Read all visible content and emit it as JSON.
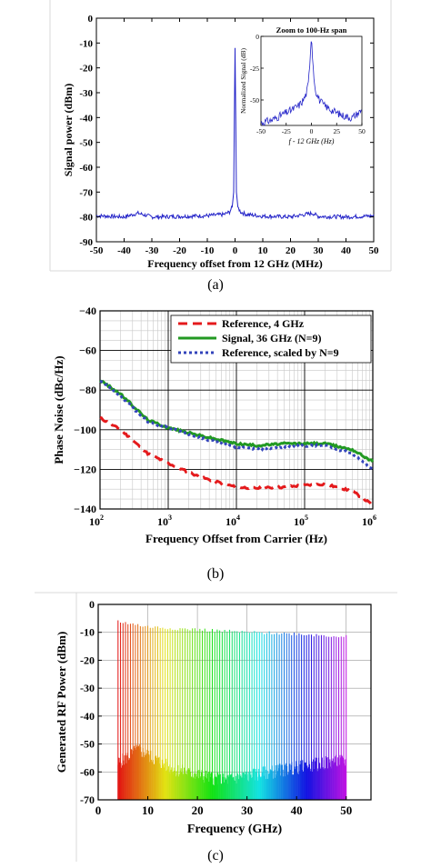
{
  "chart_data": [
    {
      "id": "a",
      "type": "line",
      "caption": "(a)",
      "xlabel": "Frequency offset from 12 GHz (MHz)",
      "ylabel": "Signal power (dBm)",
      "xlim": [
        -50,
        50
      ],
      "ylim": [
        -90,
        0
      ],
      "xticks": [
        -50,
        -40,
        -30,
        -20,
        -10,
        0,
        10,
        20,
        30,
        40,
        50
      ],
      "yticks": [
        0,
        -10,
        -20,
        -30,
        -40,
        -50,
        -60,
        -70,
        -80,
        -90
      ],
      "grid": false,
      "color": "#2323c8",
      "series": [
        {
          "x": [
            -50,
            -40,
            -35,
            -30,
            -20,
            -10,
            -4,
            -2,
            -1,
            -0.5,
            0,
            0.5,
            1,
            2,
            4,
            10,
            20,
            28,
            30,
            40,
            50
          ],
          "y": [
            -79.5,
            -80,
            -78.5,
            -80,
            -79.8,
            -79.5,
            -79,
            -78,
            -76,
            -70,
            -12,
            -70,
            -76,
            -78,
            -79,
            -79.7,
            -80,
            -78.5,
            -79.8,
            -80,
            -79.6
          ]
        }
      ],
      "inset": {
        "title": "Zoom to 100-Hz span",
        "xlabel": "f - 12 GHz (Hz)",
        "ylabel": "Normalized Signal (dB)",
        "xlim": [
          -50,
          50
        ],
        "ylim": [
          -70,
          0
        ],
        "xticks": [
          -50,
          -25,
          0,
          25,
          50
        ],
        "yticks": [
          0,
          -25,
          -50
        ],
        "series": [
          {
            "x": [
              -50,
              -40,
              -30,
              -20,
              -12,
              -8,
              -5,
              -3,
              -1.5,
              0,
              1.5,
              3,
              5,
              8,
              12,
              20,
              30,
              40,
              50
            ],
            "y": [
              -68,
              -66,
              -62,
              -58,
              -54,
              -50,
              -45,
              -37,
              -20,
              0,
              -20,
              -37,
              -45,
              -50,
              -54,
              -58,
              -62,
              -64,
              -58
            ]
          }
        ]
      }
    },
    {
      "id": "b",
      "type": "line",
      "caption": "(b)",
      "xlabel": "Frequency Offset from Carrier (Hz)",
      "ylabel": "Phase Noise (dBc/Hz)",
      "xscale": "log",
      "xlim": [
        100,
        1000000
      ],
      "ylim": [
        -140,
        -40
      ],
      "xticks": [
        "10",
        "10",
        "10",
        "10",
        "10"
      ],
      "xtick_exponents": [
        "2",
        "3",
        "4",
        "5",
        "6"
      ],
      "yticks": [
        "−140",
        "−120",
        "−100",
        "−80",
        "−60",
        "−40"
      ],
      "grid": true,
      "legend": "top-right",
      "series": [
        {
          "name": "Reference, 4 GHz",
          "color": "#e41a1c",
          "style": "dashed",
          "x": [
            100,
            200,
            500,
            1000,
            3000,
            10000,
            20000,
            50000,
            100000,
            200000,
            500000,
            1000000
          ],
          "y": [
            -94,
            -100,
            -112,
            -117,
            -124,
            -129,
            -129.5,
            -129,
            -128,
            -127.5,
            -131,
            -138
          ]
        },
        {
          "name": "Signal, 36 GHz (N=9)",
          "color": "#229922",
          "style": "solid",
          "x": [
            100,
            200,
            500,
            1000,
            3000,
            10000,
            20000,
            50000,
            100000,
            200000,
            500000,
            1000000
          ],
          "y": [
            -75,
            -82,
            -95,
            -99,
            -103,
            -107,
            -108,
            -107,
            -107,
            -107,
            -110,
            -116
          ]
        },
        {
          "name": "Reference, scaled by N=9",
          "color": "#3344bb",
          "style": "dotted",
          "x": [
            100,
            200,
            500,
            1000,
            3000,
            10000,
            20000,
            50000,
            100000,
            200000,
            500000,
            1000000
          ],
          "y": [
            -75,
            -83,
            -96,
            -99,
            -104,
            -109,
            -109.5,
            -109,
            -108,
            -108,
            -112,
            -120
          ]
        }
      ]
    },
    {
      "id": "c",
      "type": "bar",
      "caption": "(c)",
      "xlabel": "Frequency (GHz)",
      "ylabel": "Generated RF Power (dBm)",
      "xlim": [
        0,
        55
      ],
      "ylim": [
        -70,
        0
      ],
      "xticks": [
        0,
        10,
        20,
        30,
        40,
        50
      ],
      "yticks": [
        0,
        -10,
        -20,
        -30,
        -40,
        -50,
        -60,
        -70
      ],
      "grid": true,
      "comb": {
        "start_ghz": 4,
        "end_ghz": 50,
        "step_ghz": 0.5,
        "peak_envelope_x": [
          4,
          10,
          20,
          30,
          40,
          50
        ],
        "peak_envelope_y": [
          -6,
          -8,
          -9,
          -10,
          -10.5,
          -11.5
        ],
        "floor_envelope_x": [
          4,
          8,
          15,
          25,
          35,
          45,
          50
        ],
        "floor_envelope_y": [
          -57,
          -52,
          -59,
          -63,
          -60,
          -57,
          -56
        ]
      }
    }
  ]
}
